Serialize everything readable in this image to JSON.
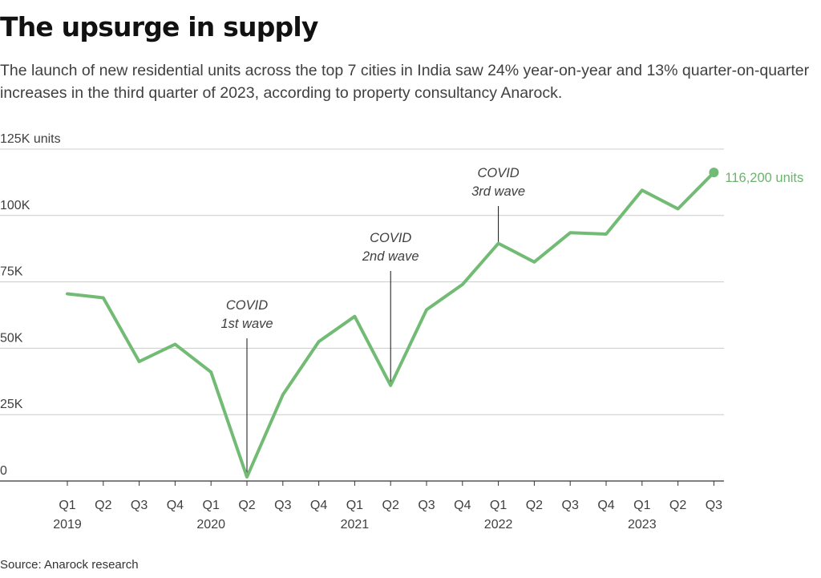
{
  "title": "The upsurge in supply",
  "subtitle": "The launch of new residential units across the top 7 cities in India saw 24% year-on-year and 13% quarter-on-quarter increases in the third quarter of 2023, according to property consultancy Anarock.",
  "source": "Source: Anarock research",
  "colors": {
    "line": "#72bb74",
    "grid": "#cccccc",
    "axis": "#333333",
    "annotation": "#111111"
  },
  "chart_data": {
    "type": "line",
    "title": "The upsurge in supply",
    "ylabel": "",
    "xlabel": "",
    "ylim": [
      0,
      125000
    ],
    "grid": true,
    "y_ticks": [
      {
        "value": 125000,
        "label": "125K units"
      },
      {
        "value": 100000,
        "label": "100K"
      },
      {
        "value": 75000,
        "label": "75K"
      },
      {
        "value": 50000,
        "label": "50K"
      },
      {
        "value": 25000,
        "label": "25K"
      },
      {
        "value": 0,
        "label": "0"
      }
    ],
    "categories": [
      "Q1",
      "Q2",
      "Q3",
      "Q4",
      "Q1",
      "Q2",
      "Q3",
      "Q4",
      "Q1",
      "Q2",
      "Q3",
      "Q4",
      "Q1",
      "Q2",
      "Q3",
      "Q4",
      "Q1",
      "Q2",
      "Q3"
    ],
    "year_labels": [
      {
        "index": 0,
        "label": "2019"
      },
      {
        "index": 4,
        "label": "2020"
      },
      {
        "index": 8,
        "label": "2021"
      },
      {
        "index": 12,
        "label": "2022"
      },
      {
        "index": 16,
        "label": "2023"
      }
    ],
    "series": [
      {
        "values": [
          70500,
          69000,
          45000,
          51500,
          41000,
          1500,
          32500,
          52500,
          62000,
          36000,
          64500,
          74000,
          89500,
          82500,
          93500,
          93000,
          109500,
          102500,
          116200
        ]
      }
    ],
    "end_label": "116,200 units",
    "annotations": [
      {
        "index": 5,
        "lines": [
          "COVID",
          "1st wave"
        ]
      },
      {
        "index": 9,
        "lines": [
          "COVID",
          "2nd wave"
        ]
      },
      {
        "index": 12,
        "lines": [
          "COVID",
          "3rd wave"
        ]
      }
    ]
  }
}
